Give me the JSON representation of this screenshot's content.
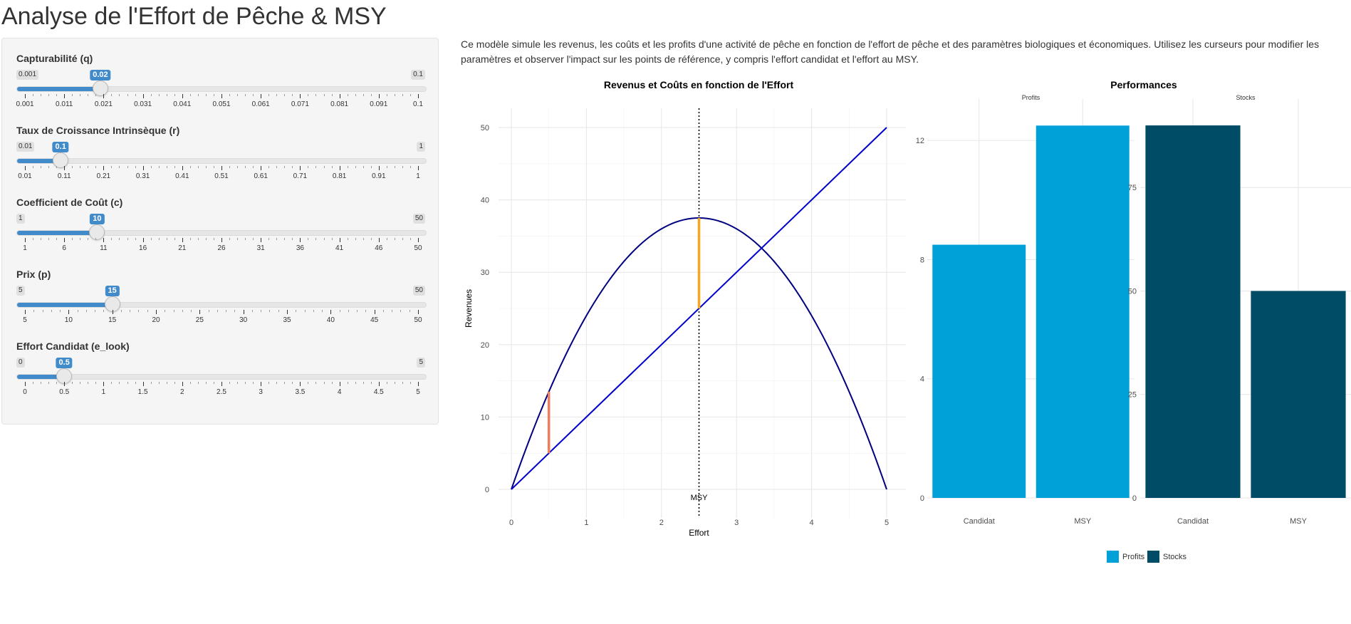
{
  "page": {
    "title": "Analyse de l'Effort de Pêche & MSY",
    "description": "Ce modèle simule les revenus, les coûts et les profits d'une activité de pêche en fonction de l'effort de pêche et des paramètres biologiques et économiques. Utilisez les curseurs pour modifier les paramètres et observer l'impact sur les points de référence, y compris l'effort candidat et l'effort au MSY."
  },
  "sliders": [
    {
      "label": "Capturabilité (q)",
      "min": 0.001,
      "max": 0.1,
      "value": 0.02,
      "min_label": "0.001",
      "max_label": "0.1",
      "value_label": "0.02",
      "ticks": [
        "0.001",
        "0.011",
        "0.021",
        "0.031",
        "0.041",
        "0.051",
        "0.061",
        "0.071",
        "0.081",
        "0.091",
        "0.1"
      ]
    },
    {
      "label": "Taux de Croissance Intrinsèque (r)",
      "min": 0.01,
      "max": 1,
      "value": 0.1,
      "min_label": "0.01",
      "max_label": "1",
      "value_label": "0.1",
      "ticks": [
        "0.01",
        "0.11",
        "0.21",
        "0.31",
        "0.41",
        "0.51",
        "0.61",
        "0.71",
        "0.81",
        "0.91",
        "1"
      ]
    },
    {
      "label": "Coefficient de Coût (c)",
      "min": 1,
      "max": 50,
      "value": 10,
      "min_label": "1",
      "max_label": "50",
      "value_label": "10",
      "ticks": [
        "1",
        "6",
        "11",
        "16",
        "21",
        "26",
        "31",
        "36",
        "41",
        "46",
        "50"
      ]
    },
    {
      "label": "Prix (p)",
      "min": 5,
      "max": 50,
      "value": 15,
      "min_label": "5",
      "max_label": "50",
      "value_label": "15",
      "ticks": [
        "5",
        "10",
        "15",
        "20",
        "25",
        "30",
        "35",
        "40",
        "45",
        "50"
      ]
    },
    {
      "label": "Effort Candidat (e_look)",
      "min": 0,
      "max": 5,
      "value": 0.5,
      "min_label": "0",
      "max_label": "5",
      "value_label": "0.5",
      "ticks": [
        "0",
        "0.5",
        "1",
        "1.5",
        "2",
        "2.5",
        "3",
        "3.5",
        "4",
        "4.5",
        "5"
      ]
    }
  ],
  "chart_data": [
    {
      "type": "line",
      "title": "Revenus et Coûts en fonction de l'Effort",
      "xlabel": "Effort",
      "ylabel": "Revenues",
      "xlim": [
        0,
        5
      ],
      "ylim": [
        0,
        50
      ],
      "x_ticks": [
        "0",
        "1",
        "2",
        "3",
        "4",
        "5"
      ],
      "y_ticks": [
        "0",
        "10",
        "20",
        "30",
        "40",
        "50"
      ],
      "grid": true,
      "series": [
        {
          "kind": "revenue_curve",
          "color": "#000080",
          "formula": "y = 30*x - 6*x^2",
          "x": [
            0,
            0.5,
            1,
            1.5,
            2,
            2.5,
            3,
            3.5,
            4,
            4.5,
            5
          ],
          "y": [
            0,
            13.5,
            24,
            31.5,
            36,
            37.5,
            36,
            31.5,
            24,
            13.5,
            0
          ]
        },
        {
          "kind": "cost_line",
          "color": "#0000cd",
          "x": [
            0,
            5
          ],
          "y": [
            0,
            50
          ]
        }
      ],
      "annotations": [
        {
          "kind": "vertical_dotted",
          "x": 2.5,
          "label": "MSY"
        },
        {
          "kind": "profit_segment",
          "color": "#f07c5e",
          "x": 0.5,
          "y": [
            5,
            13.5
          ]
        },
        {
          "kind": "profit_segment",
          "color": "#f5a623",
          "x": 2.5,
          "y": [
            25,
            37.5
          ]
        }
      ]
    },
    {
      "type": "bar",
      "title": "Performances",
      "facets": [
        {
          "title": "Profits",
          "categories": [
            "Candidat",
            "MSY"
          ],
          "values": [
            8.5,
            12.5
          ],
          "ylim": [
            0,
            13.2
          ],
          "y_ticks": [
            0,
            4,
            8,
            12
          ],
          "color": "#00a0d8"
        },
        {
          "title": "Stocks",
          "categories": [
            "Candidat",
            "MSY"
          ],
          "values": [
            90,
            50
          ],
          "ylim": [
            0,
            95
          ],
          "y_ticks": [
            0,
            25,
            50,
            75
          ],
          "color": "#004c66"
        }
      ],
      "legend": {
        "placement": "bottom",
        "items": [
          {
            "label": "Profits",
            "color": "#00a0d8"
          },
          {
            "label": "Stocks",
            "color": "#004c66"
          }
        ]
      }
    }
  ]
}
